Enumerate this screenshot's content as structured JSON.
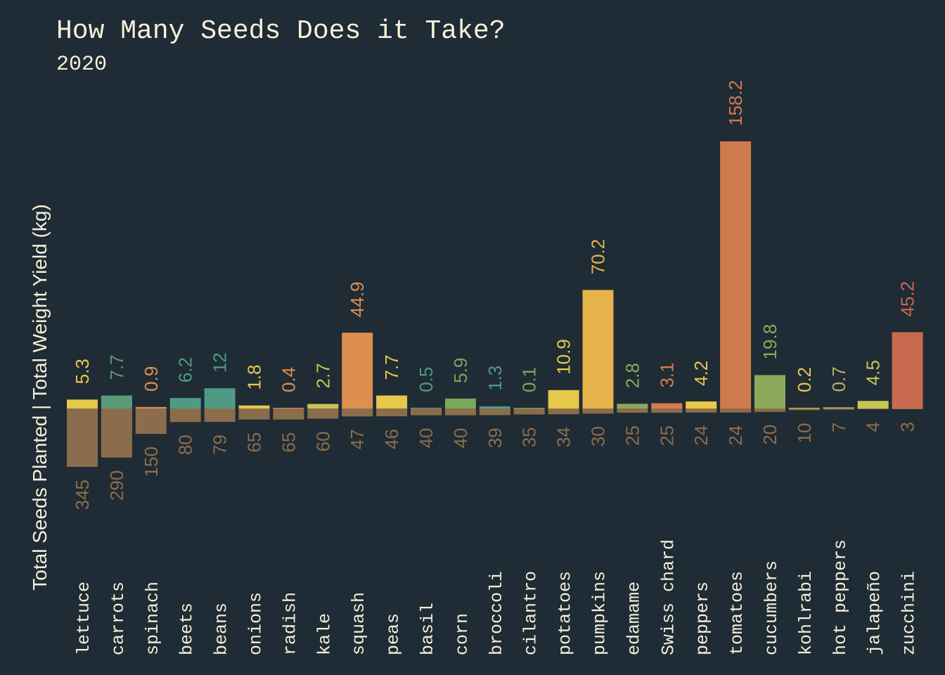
{
  "title": "How Many Seeds Does it Take?",
  "subtitle": "2020",
  "chart_data": {
    "type": "bar",
    "title": "How Many Seeds Does it Take?",
    "subtitle": "2020",
    "ylabel": "Total Seeds Planted | Total Weight Yield (kg)",
    "categories": [
      "lettuce",
      "carrots",
      "spinach",
      "beets",
      "beans",
      "onions",
      "radish",
      "kale",
      "squash",
      "peas",
      "basil",
      "corn",
      "broccoli",
      "cilantro",
      "potatoes",
      "pumpkins",
      "edamame",
      "Swiss chard",
      "peppers",
      "tomatoes",
      "cucumbers",
      "kohlrabi",
      "hot peppers",
      "jalapeño",
      "zucchini"
    ],
    "series": [
      {
        "name": "Total Weight Yield (kg)",
        "values": [
          5.3,
          7.7,
          0.9,
          6.2,
          12,
          1.8,
          0.4,
          2.7,
          44.9,
          7.7,
          0.5,
          5.9,
          1.3,
          0.1,
          10.9,
          70.2,
          2.8,
          3.1,
          4.2,
          158.2,
          19.8,
          0.2,
          0.7,
          4.5,
          45.2
        ],
        "labels": [
          "5.3",
          "7.7",
          "0.9",
          "6.2",
          "12",
          "1.8",
          "0.4",
          "2.7",
          "44.9",
          "7.7",
          "0.5",
          "5.9",
          "1.3",
          "0.1",
          "10.9",
          "70.2",
          "2.8",
          "3.1",
          "4.2",
          "158.2",
          "19.8",
          "0.2",
          "0.7",
          "4.5",
          "45.2"
        ],
        "colors": [
          "#e6c84a",
          "#5a9a78",
          "#dc8f4e",
          "#4f9a84",
          "#4f9a84",
          "#e6c84a",
          "#dc8f4e",
          "#c8c455",
          "#dc8f4e",
          "#e6c84a",
          "#4f9a84",
          "#7aa85a",
          "#4f9a84",
          "#7aa85a",
          "#e6c84a",
          "#e6b24a",
          "#8aaa5a",
          "#d87a50",
          "#e6c84a",
          "#cf7a4e",
          "#8aaa5a",
          "#e6c84a",
          "#b8b060",
          "#c8c455",
          "#c86a50"
        ]
      },
      {
        "name": "Total Seeds Planted",
        "values": [
          345,
          290,
          150,
          80,
          79,
          65,
          65,
          60,
          47,
          46,
          40,
          40,
          39,
          35,
          34,
          30,
          25,
          25,
          24,
          24,
          20,
          10,
          7,
          4,
          3
        ],
        "color": "#8b6d4b",
        "label_color": "#8b6d4b"
      }
    ]
  }
}
